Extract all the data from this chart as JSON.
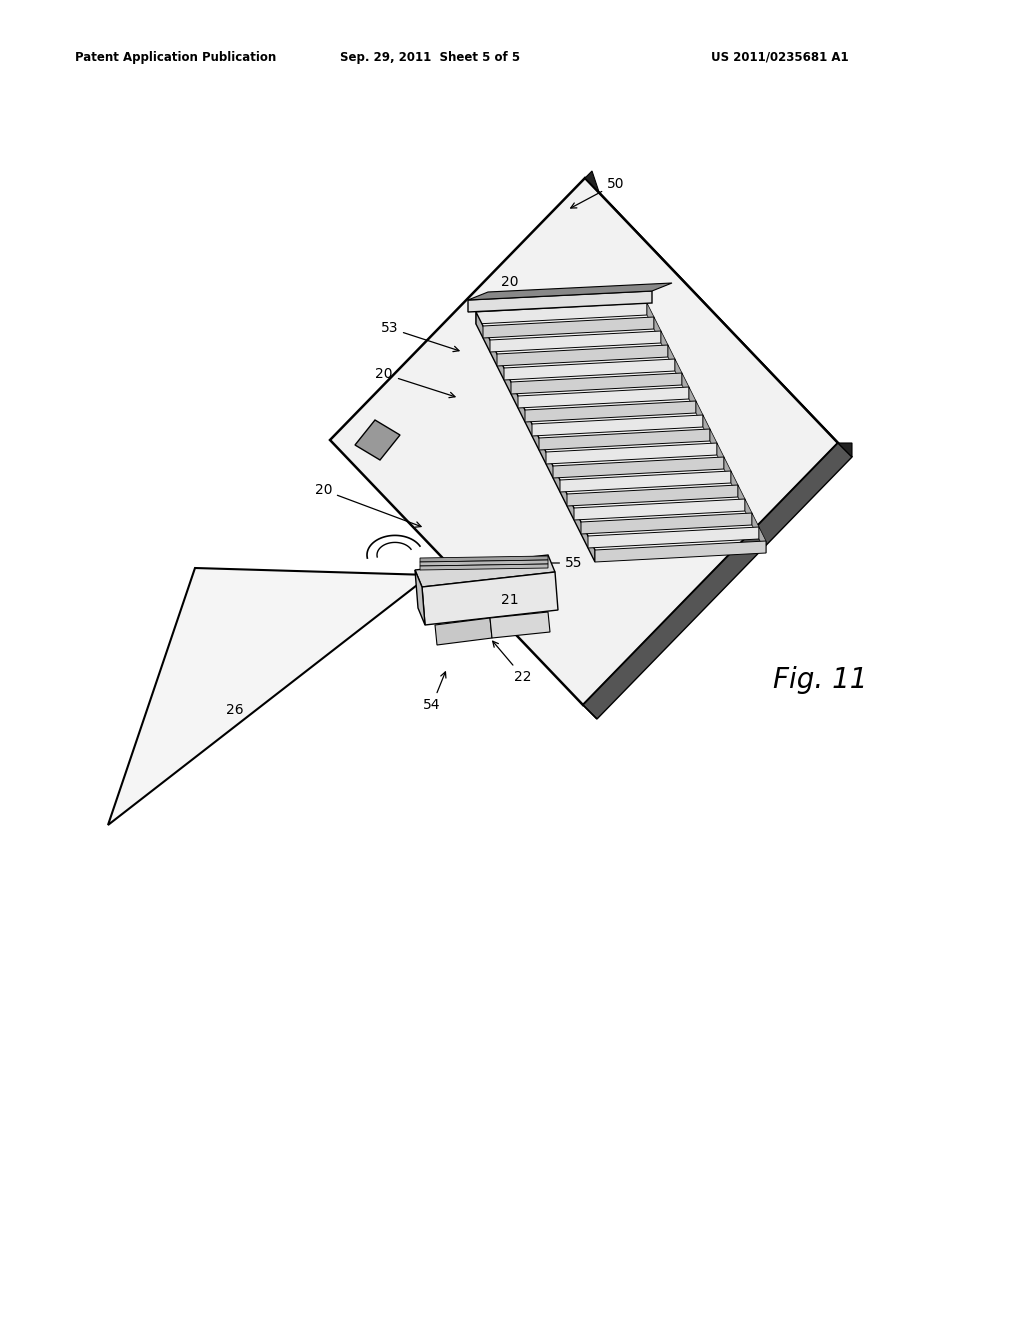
{
  "bg_color": "#ffffff",
  "header_left": "Patent Application Publication",
  "header_mid": "Sep. 29, 2011  Sheet 5 of 5",
  "header_right": "US 2011/0235681 A1",
  "fig_label": "Fig. 11"
}
